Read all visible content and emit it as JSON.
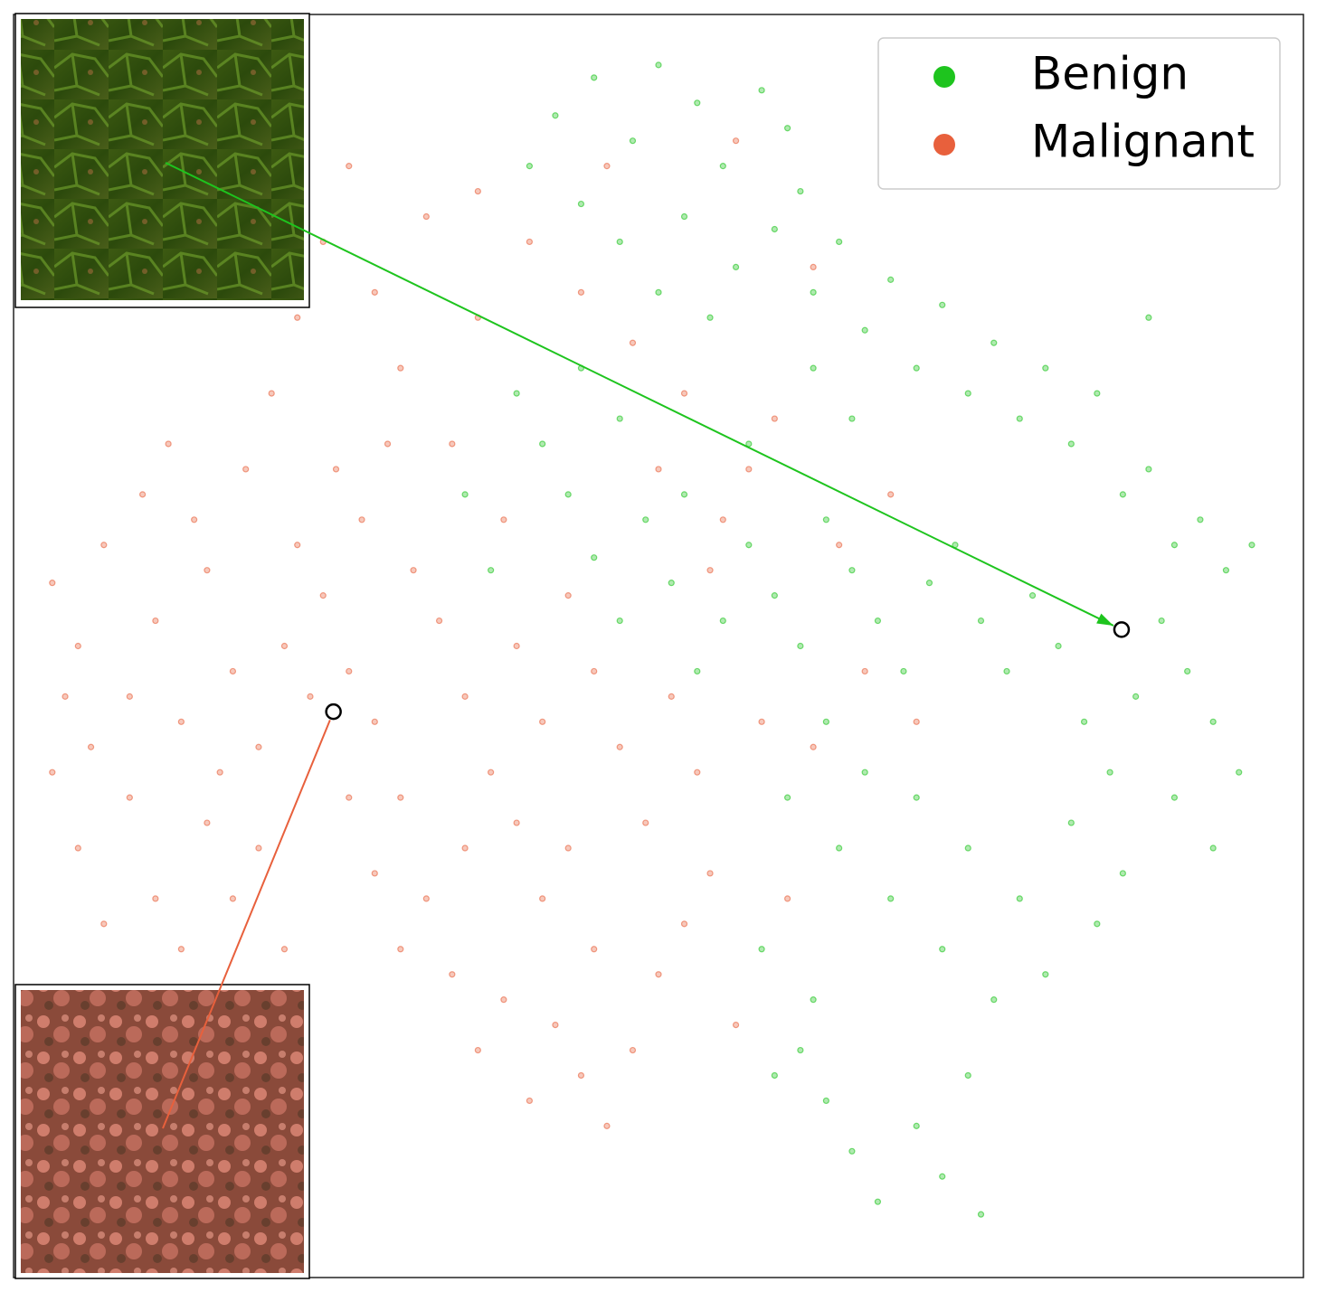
{
  "chart_data": {
    "type": "scatter",
    "xlim": [
      0,
      100
    ],
    "ylim": [
      0,
      100
    ],
    "legend": "upper right",
    "series": [
      {
        "name": "Benign",
        "color": "#1ec41e",
        "x": [
          42,
          45,
          48,
          50,
          53,
          55,
          58,
          60,
          44,
          47,
          52,
          56,
          59,
          61,
          40,
          50,
          54,
          62,
          64,
          66,
          68,
          70,
          72,
          74,
          76,
          78,
          80,
          82,
          84,
          86,
          88,
          90,
          92,
          94,
          96,
          89,
          91,
          93,
          95,
          87,
          85,
          83,
          81,
          79,
          77,
          75,
          73,
          71,
          69,
          67,
          65,
          63,
          61,
          59,
          57,
          55,
          53,
          51,
          49,
          47,
          45,
          43,
          41,
          39,
          63,
          66,
          70,
          74,
          78,
          82,
          86,
          90,
          93,
          72,
          76,
          80,
          84,
          68,
          64,
          60,
          58,
          61,
          63,
          65,
          67,
          70,
          72,
          74,
          75,
          59,
          62,
          44,
          47,
          35,
          37,
          52,
          57,
          65,
          62,
          88
        ],
        "values": [
          92,
          95,
          90,
          96,
          93,
          88,
          94,
          91,
          85,
          82,
          84,
          80,
          83,
          86,
          88,
          78,
          76,
          78,
          82,
          75,
          79,
          72,
          77,
          70,
          74,
          68,
          72,
          66,
          70,
          62,
          64,
          58,
          60,
          56,
          58,
          52,
          48,
          44,
          40,
          46,
          40,
          44,
          50,
          54,
          48,
          52,
          58,
          55,
          48,
          52,
          56,
          60,
          50,
          54,
          58,
          52,
          48,
          55,
          60,
          52,
          57,
          62,
          66,
          70,
          44,
          40,
          38,
          34,
          30,
          36,
          32,
          38,
          34,
          26,
          22,
          24,
          28,
          30,
          34,
          38,
          26,
          18,
          14,
          10,
          6,
          12,
          8,
          16,
          5,
          16,
          22,
          72,
          68,
          62,
          56,
          62,
          66,
          68,
          72,
          76
        ]
      },
      {
        "name": "Malignant",
        "color": "#e8603c",
        "x": [
          3,
          5,
          7,
          9,
          11,
          13,
          15,
          17,
          19,
          21,
          3,
          5,
          7,
          9,
          11,
          13,
          15,
          17,
          19,
          21,
          4,
          6,
          10,
          14,
          18,
          22,
          24,
          26,
          28,
          30,
          20,
          22,
          24,
          26,
          28,
          30,
          32,
          34,
          36,
          38,
          25,
          27,
          29,
          31,
          33,
          35,
          37,
          39,
          41,
          43,
          45,
          47,
          49,
          51,
          53,
          55,
          57,
          59,
          52,
          48,
          44,
          40,
          36,
          46,
          56,
          50,
          54,
          58,
          60,
          62,
          64,
          66,
          70,
          68,
          32,
          34,
          36,
          38,
          40,
          42,
          44,
          46,
          48,
          50,
          52,
          54,
          56,
          28,
          30,
          26,
          23,
          41,
          45,
          35,
          39,
          43,
          12,
          16,
          8,
          62
        ],
        "values": [
          55,
          50,
          58,
          46,
          52,
          44,
          56,
          48,
          42,
          50,
          40,
          34,
          28,
          38,
          30,
          26,
          36,
          30,
          34,
          26,
          46,
          42,
          62,
          60,
          64,
          58,
          54,
          48,
          44,
          38,
          70,
          76,
          82,
          88,
          78,
          72,
          84,
          66,
          76,
          60,
          64,
          60,
          66,
          56,
          52,
          46,
          40,
          50,
          44,
          54,
          48,
          42,
          36,
          46,
          40,
          60,
          64,
          68,
          70,
          74,
          78,
          82,
          86,
          88,
          90,
          64,
          56,
          44,
          30,
          42,
          58,
          48,
          44,
          62,
          30,
          24,
          18,
          22,
          14,
          20,
          16,
          12,
          18,
          24,
          28,
          32,
          20,
          32,
          26,
          38,
          46,
          30,
          26,
          34,
          36,
          34,
          66,
          40,
          22,
          80
        ]
      }
    ],
    "highlights": [
      {
        "x": 85.9,
        "y": 51.3
      },
      {
        "x": 24.8,
        "y": 44.8
      }
    ]
  }
}
